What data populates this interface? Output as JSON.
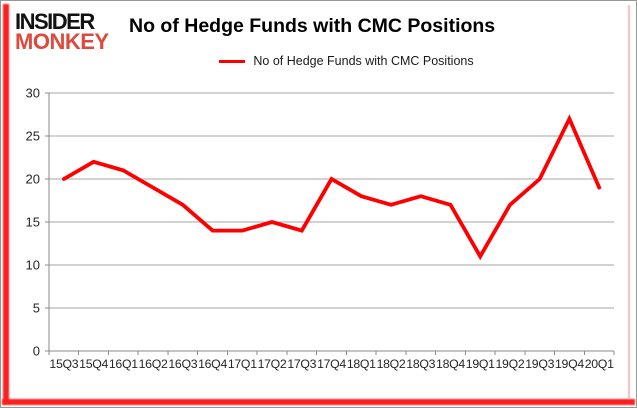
{
  "logo": {
    "line1": "INSIDER",
    "line2": "MONKEY"
  },
  "header": {
    "title": "No of Hedge Funds with CMC Positions"
  },
  "legend": {
    "label": "No of Hedge Funds with CMC Positions"
  },
  "colors": {
    "line": "#ff0000",
    "accent_border": "#fb2020",
    "accent_border_light": "#f0b9b9",
    "grid": "#a6a6a6",
    "axis": "#8a8a8a",
    "logo_black": "#121212",
    "logo_red": "#de4a3c"
  },
  "chart_data": {
    "type": "line",
    "title": "No of Hedge Funds with CMC Positions",
    "categories": [
      "15Q3",
      "15Q4",
      "16Q1",
      "16Q2",
      "16Q3",
      "16Q4",
      "17Q1",
      "17Q2",
      "17Q3",
      "17Q4",
      "18Q1",
      "18Q2",
      "18Q3",
      "18Q4",
      "19Q1",
      "19Q2",
      "19Q3",
      "19Q4",
      "20Q1"
    ],
    "series": [
      {
        "name": "No of Hedge Funds with CMC Positions",
        "values": [
          20,
          22,
          21,
          19,
          17,
          14,
          14,
          15,
          14,
          20,
          18,
          17,
          18,
          17,
          11,
          17,
          20,
          27,
          19
        ]
      }
    ],
    "ylim": [
      0,
      30
    ],
    "ytick_step": 5,
    "grid": "horizontal",
    "legend_position": "top"
  }
}
